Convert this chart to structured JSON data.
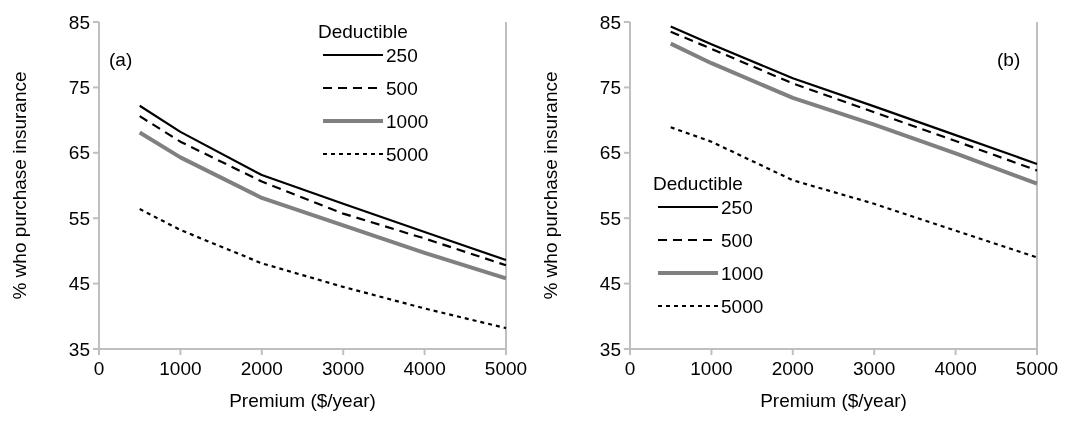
{
  "chart_data": [
    {
      "type": "line",
      "ylabel": "% who purchase insurance",
      "xlabel": "Premium ($/year)",
      "legend_title": "Deductible",
      "legend": "top right",
      "annotations": [
        "(a)"
      ],
      "xlim": [
        0,
        5000
      ],
      "xticks": [
        0,
        1000,
        2000,
        3000,
        4000,
        5000
      ],
      "ylim": [
        35,
        85
      ],
      "yticks": [
        35,
        45,
        55,
        65,
        75,
        85
      ],
      "x": [
        500,
        1000,
        2000,
        3000,
        4000,
        5000
      ],
      "series": [
        {
          "name": "250",
          "color": "#000000",
          "line_style": "solid",
          "values": [
            72.2,
            68.2,
            61.6,
            57.2,
            52.9,
            48.6
          ]
        },
        {
          "name": "500",
          "color": "#000000",
          "line_style": "dashed",
          "values": [
            70.6,
            66.7,
            60.6,
            55.7,
            51.9,
            47.8
          ]
        },
        {
          "name": "1000",
          "color": "#808080",
          "line_style": "solid",
          "values": [
            68.1,
            64.3,
            58.1,
            53.9,
            49.7,
            45.8
          ]
        },
        {
          "name": "5000",
          "color": "#000000",
          "line_style": "dotted",
          "values": [
            56.4,
            53.2,
            48.1,
            44.5,
            41.2,
            38.2
          ]
        }
      ]
    },
    {
      "type": "line",
      "ylabel": "% who purchase insurance",
      "xlabel": "Premium ($/year)",
      "legend_title": "Deductible",
      "legend": "bottom left",
      "annotations": [
        "(b)"
      ],
      "xlim": [
        0,
        5000
      ],
      "xticks": [
        0,
        1000,
        2000,
        3000,
        4000,
        5000
      ],
      "ylim": [
        35,
        85
      ],
      "yticks": [
        35,
        45,
        55,
        65,
        75,
        85
      ],
      "x": [
        500,
        1000,
        2000,
        3000,
        4000,
        5000
      ],
      "series": [
        {
          "name": "250",
          "color": "#000000",
          "line_style": "solid",
          "values": [
            84.3,
            81.6,
            76.4,
            72.1,
            67.7,
            63.3
          ]
        },
        {
          "name": "500",
          "color": "#000000",
          "line_style": "dashed",
          "values": [
            83.5,
            80.9,
            75.6,
            71.2,
            66.8,
            62.3
          ]
        },
        {
          "name": "1000",
          "color": "#808080",
          "line_style": "solid",
          "values": [
            81.7,
            78.7,
            73.4,
            69.3,
            64.9,
            60.3
          ]
        },
        {
          "name": "5000",
          "color": "#000000",
          "line_style": "dotted",
          "values": [
            68.9,
            66.7,
            60.8,
            57.2,
            53.1,
            49.0
          ]
        }
      ]
    }
  ]
}
